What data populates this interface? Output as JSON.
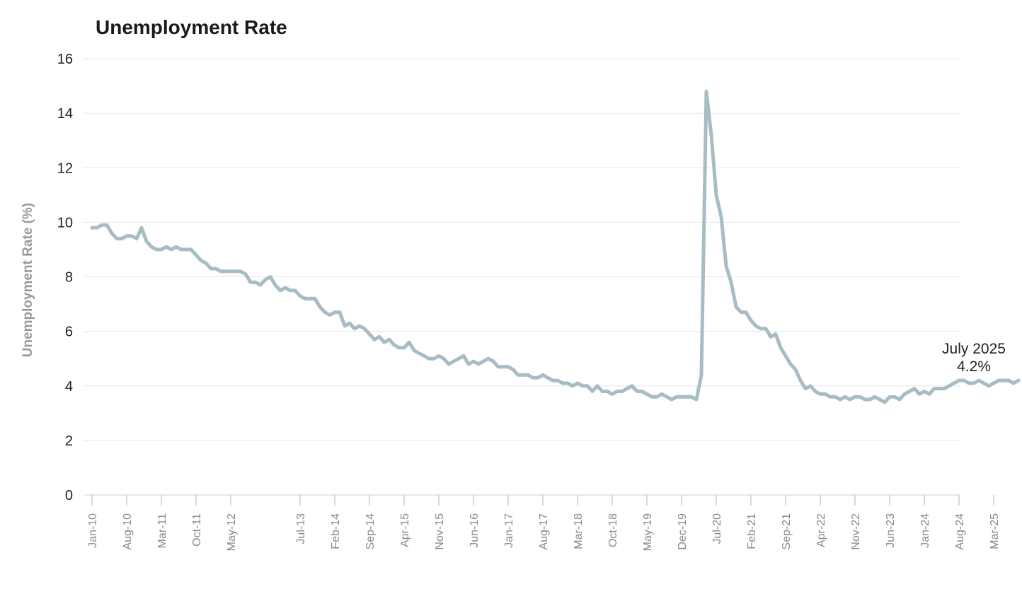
{
  "chart_data": {
    "type": "line",
    "title": "Unemployment Rate",
    "xlabel": "",
    "ylabel": "Unemployment Rate (%)",
    "ylim": [
      0,
      16
    ],
    "yticks": [
      0,
      2,
      4,
      6,
      8,
      10,
      12,
      14,
      16
    ],
    "grid": true,
    "legend": "none",
    "series_color": "#a7bcc4",
    "x_start": "Jan-10",
    "x_end": "Jul-25",
    "x_ticks": [
      "Jan-10",
      "Aug-10",
      "Mar-11",
      "Oct-11",
      "May-12",
      "Jul-13",
      "Feb-14",
      "Sep-14",
      "Apr-15",
      "Nov-15",
      "Jun-16",
      "Jan-17",
      "Aug-17",
      "Mar-18",
      "Oct-18",
      "May-19",
      "Dec-19",
      "Jul-20",
      "Feb-21",
      "Sep-21",
      "Apr-22",
      "Nov-22",
      "Jun-23",
      "Jan-24",
      "Aug-24",
      "Mar-25"
    ],
    "x_tick_months": [
      0,
      7,
      14,
      21,
      28,
      42,
      49,
      56,
      63,
      70,
      77,
      84,
      91,
      98,
      105,
      112,
      119,
      126,
      133,
      140,
      147,
      154,
      161,
      168,
      175,
      182
    ],
    "annotation": {
      "line1": "July 2025",
      "line2": "4.2%"
    },
    "series": [
      {
        "values": [
          9.8,
          9.8,
          9.9,
          9.9,
          9.6,
          9.4,
          9.4,
          9.5,
          9.5,
          9.4,
          9.8,
          9.3,
          9.1,
          9.0,
          9.0,
          9.1,
          9.0,
          9.1,
          9.0,
          9.0,
          9.0,
          8.8,
          8.6,
          8.5,
          8.3,
          8.3,
          8.2,
          8.2,
          8.2,
          8.2,
          8.2,
          8.1,
          7.8,
          7.8,
          7.7,
          7.9,
          8.0,
          7.7,
          7.5,
          7.6,
          7.5,
          7.5,
          7.3,
          7.2,
          7.2,
          7.2,
          6.9,
          6.7,
          6.6,
          6.7,
          6.7,
          6.2,
          6.3,
          6.1,
          6.2,
          6.1,
          5.9,
          5.7,
          5.8,
          5.6,
          5.7,
          5.5,
          5.4,
          5.4,
          5.6,
          5.3,
          5.2,
          5.1,
          5.0,
          5.0,
          5.1,
          5.0,
          4.8,
          4.9,
          5.0,
          5.1,
          4.8,
          4.9,
          4.8,
          4.9,
          5.0,
          4.9,
          4.7,
          4.7,
          4.7,
          4.6,
          4.4,
          4.4,
          4.4,
          4.3,
          4.3,
          4.4,
          4.3,
          4.2,
          4.2,
          4.1,
          4.1,
          4.0,
          4.1,
          4.0,
          4.0,
          3.8,
          4.0,
          3.8,
          3.8,
          3.7,
          3.8,
          3.8,
          3.9,
          4.0,
          3.8,
          3.8,
          3.7,
          3.6,
          3.6,
          3.7,
          3.6,
          3.5,
          3.6,
          3.6,
          3.6,
          3.6,
          3.5,
          4.4,
          14.8,
          13.2,
          11.0,
          10.2,
          8.4,
          7.8,
          6.9,
          6.7,
          6.7,
          6.4,
          6.2,
          6.1,
          6.1,
          5.8,
          5.9,
          5.4,
          5.1,
          4.8,
          4.6,
          4.2,
          3.9,
          4.0,
          3.8,
          3.7,
          3.7,
          3.6,
          3.6,
          3.5,
          3.6,
          3.5,
          3.6,
          3.6,
          3.5,
          3.5,
          3.6,
          3.5,
          3.4,
          3.6,
          3.6,
          3.5,
          3.7,
          3.8,
          3.9,
          3.7,
          3.8,
          3.7,
          3.9,
          3.9,
          3.9,
          4.0,
          4.1,
          4.2,
          4.2,
          4.1,
          4.1,
          4.2,
          4.1,
          4.0,
          4.1,
          4.2,
          4.2,
          4.2,
          4.1,
          4.2
        ]
      }
    ]
  }
}
